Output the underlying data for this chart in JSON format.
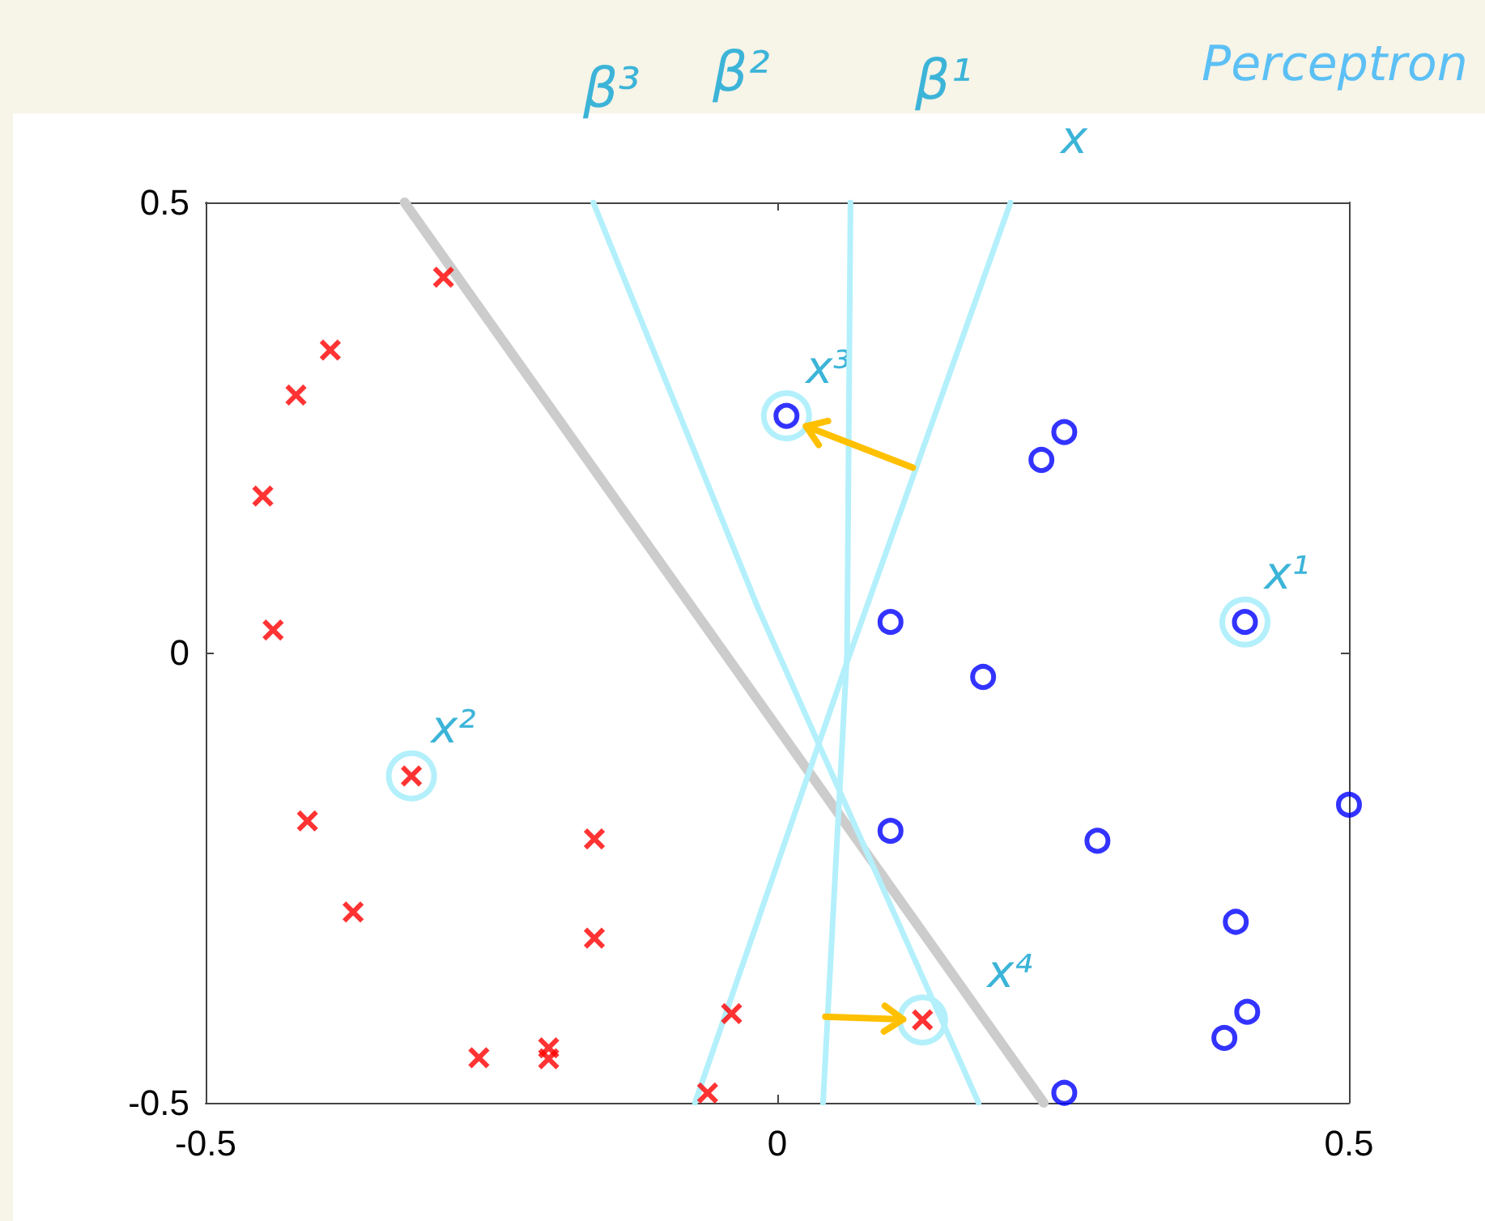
{
  "chart_data": {
    "type": "scatter",
    "xlim": [
      -0.5,
      0.5
    ],
    "ylim": [
      -0.5,
      0.5
    ],
    "xticks": [
      -0.5,
      0,
      0.5
    ],
    "yticks": [
      -0.5,
      0,
      0.5
    ],
    "grid": false,
    "series": [
      {
        "color": "#ff0000",
        "marker": "cross",
        "x": [
          -0.292,
          -0.391,
          -0.421,
          -0.45,
          -0.441,
          -0.32,
          -0.411,
          -0.371,
          -0.16,
          -0.16,
          -0.261,
          -0.2,
          -0.2,
          -0.04,
          -0.061,
          0.127
        ],
        "values": [
          0.417,
          0.336,
          0.286,
          0.174,
          0.025,
          -0.137,
          -0.187,
          -0.288,
          -0.207,
          -0.317,
          -0.45,
          -0.439,
          -0.451,
          -0.401,
          -0.489,
          -0.408
        ]
      },
      {
        "color": "#0000ff",
        "marker": "circle",
        "x": [
          0.008,
          0.231,
          0.251,
          0.099,
          0.18,
          0.409,
          0.099,
          0.28,
          0.5,
          0.401,
          0.411,
          0.391,
          0.251
        ],
        "values": [
          0.263,
          0.214,
          0.245,
          0.034,
          -0.027,
          0.034,
          -0.198,
          -0.209,
          -0.169,
          -0.299,
          -0.399,
          -0.428,
          -0.489
        ]
      },
      {
        "type": "line",
        "color": "#cccccc",
        "marker": "none",
        "x": [
          -0.326,
          0.233
        ],
        "values": [
          0.5,
          -0.5
        ]
      },
      {
        "type": "line",
        "color": "#b3f0fb",
        "marker": "none",
        "x": [
          -0.161,
          -0.017,
          0.176
        ],
        "values": [
          0.5,
          0.05,
          -0.5
        ]
      },
      {
        "type": "line",
        "color": "#b3f0fb",
        "marker": "none",
        "x": [
          0.064,
          0.061,
          0.04
        ],
        "values": [
          0.5,
          0,
          -0.5
        ]
      },
      {
        "type": "line",
        "color": "#b3f0fb",
        "marker": "none",
        "x": [
          0.204,
          0.06,
          -0.072
        ],
        "values": [
          0.5,
          -0.014,
          -0.5
        ]
      }
    ],
    "annotations": [
      "Perceptron",
      "β³",
      "β²",
      "β¹",
      "x",
      {
        "text": "x¹",
        "x": 0.409,
        "y": 0.034
      },
      {
        "text": "x²",
        "x": -0.32,
        "y": -0.137
      },
      {
        "text": "x³",
        "x": 0.008,
        "y": 0.263
      },
      {
        "text": "x⁴",
        "x": 0.127,
        "y": -0.408
      }
    ]
  }
}
